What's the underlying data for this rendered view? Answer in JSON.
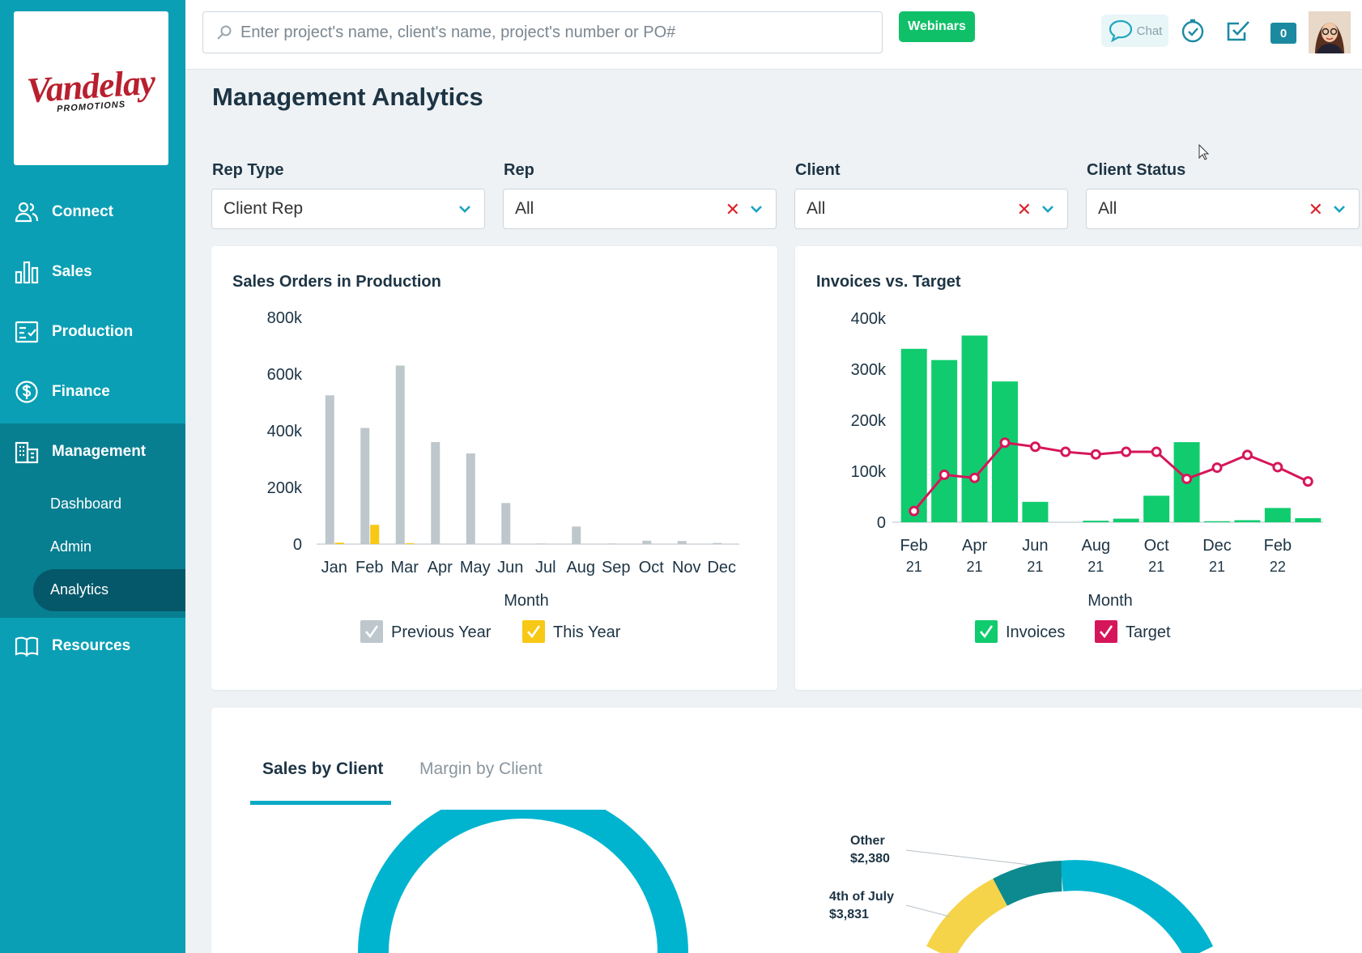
{
  "logo": {
    "main": "Vandelay",
    "sub": "PROMOTIONS"
  },
  "sidebar": {
    "items": [
      {
        "label": "Connect",
        "icon": "users-icon"
      },
      {
        "label": "Sales",
        "icon": "bar-chart-icon"
      },
      {
        "label": "Production",
        "icon": "checklist-icon"
      },
      {
        "label": "Finance",
        "icon": "dollar-icon"
      },
      {
        "label": "Management",
        "icon": "building-icon"
      },
      {
        "label": "Resources",
        "icon": "book-icon"
      }
    ],
    "management_sub": [
      {
        "label": "Dashboard"
      },
      {
        "label": "Admin"
      },
      {
        "label": "Analytics",
        "active": true
      }
    ]
  },
  "topbar": {
    "search_placeholder": "Enter project's name, client's name, project's number or PO#",
    "webinars_label": "Webinars",
    "chat_label": "Chat",
    "notification_count": "0"
  },
  "page": {
    "title": "Management Analytics"
  },
  "filters": [
    {
      "label": "Rep Type",
      "value": "Client Rep",
      "clearable": false
    },
    {
      "label": "Rep",
      "value": "All",
      "clearable": true
    },
    {
      "label": "Client",
      "value": "All",
      "clearable": true
    },
    {
      "label": "Client Status",
      "value": "All",
      "clearable": true
    }
  ],
  "tabs": [
    {
      "label": "Sales by Client",
      "active": true
    },
    {
      "label": "Margin by Client",
      "active": false
    }
  ],
  "pie_labels": [
    {
      "name": "Other",
      "value": "$2,380"
    },
    {
      "name": "4th of July",
      "value": "$3,831"
    }
  ],
  "colors": {
    "sidebar": "#0a9fb4",
    "accent": "#0aa9c4",
    "prev_year": "#bdc7cc",
    "this_year": "#f7c815",
    "invoices": "#10cc6e",
    "target": "#d6165a",
    "pie_main": "#00b4cf",
    "pie_other": "#0d8a8f",
    "pie_july": "#f5d44a"
  },
  "chart_data": [
    {
      "type": "bar",
      "title": "Sales Orders in Production",
      "xlabel": "Month",
      "ylabel": "",
      "ylim": [
        0,
        800000
      ],
      "yticks": [
        "0",
        "200k",
        "400k",
        "600k",
        "800k"
      ],
      "categories": [
        "Jan",
        "Feb",
        "Mar",
        "Apr",
        "May",
        "Jun",
        "Jul",
        "Aug",
        "Sep",
        "Oct",
        "Nov",
        "Dec"
      ],
      "series": [
        {
          "name": "Previous Year",
          "values": [
            525000,
            410000,
            630000,
            360000,
            320000,
            145000,
            2000,
            62000,
            2000,
            12000,
            11000,
            4000
          ]
        },
        {
          "name": "This Year",
          "values": [
            5000,
            68000,
            3000,
            0,
            0,
            0,
            0,
            0,
            0,
            0,
            0,
            0
          ]
        }
      ]
    },
    {
      "type": "bar",
      "title": "Invoices vs. Target",
      "xlabel": "Month",
      "ylabel": "",
      "ylim": [
        0,
        400000
      ],
      "yticks": [
        "0",
        "100k",
        "200k",
        "300k",
        "400k"
      ],
      "categories": [
        "Feb 21",
        "Mar 21",
        "Apr 21",
        "May 21",
        "Jun 21",
        "Jul 21",
        "Aug 21",
        "Sep 21",
        "Oct 21",
        "Nov 21",
        "Dec 21",
        "Jan 22",
        "Feb 22",
        "Mar 22"
      ],
      "xtick_labels": [
        [
          "Feb",
          "21"
        ],
        [
          "Apr",
          "21"
        ],
        [
          "Jun",
          "21"
        ],
        [
          "Aug",
          "21"
        ],
        [
          "Oct",
          "21"
        ],
        [
          "Dec",
          "21"
        ],
        [
          "Feb",
          "22"
        ]
      ],
      "series": [
        {
          "name": "Invoices",
          "kind": "bar",
          "values": [
            340000,
            318000,
            366000,
            276000,
            40000,
            0,
            3000,
            7000,
            52000,
            157000,
            2000,
            4000,
            28000,
            8000
          ]
        },
        {
          "name": "Target",
          "kind": "line",
          "values": [
            22000,
            93000,
            87000,
            156000,
            148000,
            138000,
            133000,
            138000,
            138000,
            85000,
            107000,
            132000,
            108000,
            80000
          ]
        }
      ]
    }
  ]
}
